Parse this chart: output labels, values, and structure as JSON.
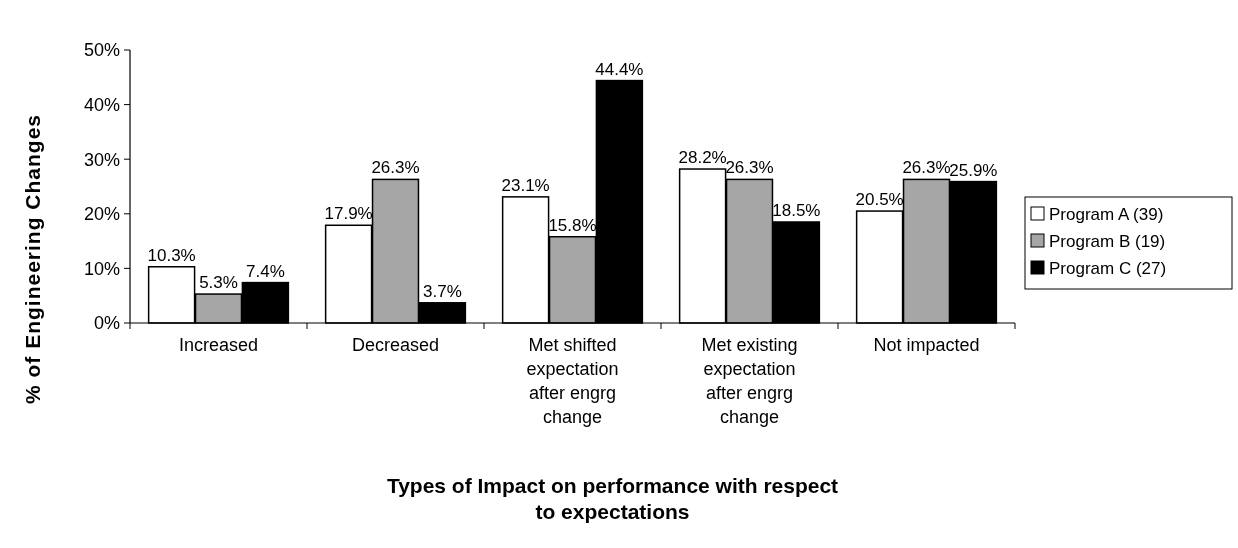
{
  "chart_data": {
    "type": "bar",
    "xlabel": "Types of Impact on performance with respect to expectations",
    "ylabel": "% of Engineering Changes",
    "categories": [
      "Increased",
      "Decreased",
      "Met shifted expectation after engrg change",
      "Met existing expectation after engrg change",
      "Not impacted"
    ],
    "series": [
      {
        "name": "Program A (39)",
        "color": "#ffffff",
        "values": [
          10.3,
          17.9,
          23.1,
          28.2,
          20.5
        ],
        "value_labels": [
          "10.3%",
          "17.9%",
          "23.1%",
          "28.2%",
          "20.5%"
        ]
      },
      {
        "name": "Program B (19)",
        "color": "#a6a6a6",
        "values": [
          5.3,
          26.3,
          15.8,
          26.3,
          26.3
        ],
        "value_labels": [
          "5.3%",
          "26.3%",
          "15.8%",
          "26.3%",
          "26.3%"
        ]
      },
      {
        "name": "Program C (27)",
        "color": "#000000",
        "values": [
          7.4,
          3.7,
          44.4,
          18.5,
          25.9
        ],
        "value_labels": [
          "7.4%",
          "3.7%",
          "44.4%",
          "18.5%",
          "25.9%"
        ]
      }
    ],
    "ylim": [
      0,
      50
    ],
    "yticks": [
      {
        "value": 0,
        "label": "0%"
      },
      {
        "value": 10,
        "label": "10%"
      },
      {
        "value": 20,
        "label": "20%"
      },
      {
        "value": 30,
        "label": "30%"
      },
      {
        "value": 40,
        "label": "40%"
      },
      {
        "value": 50,
        "label": "50%"
      }
    ],
    "grid": false,
    "legend": "right"
  }
}
